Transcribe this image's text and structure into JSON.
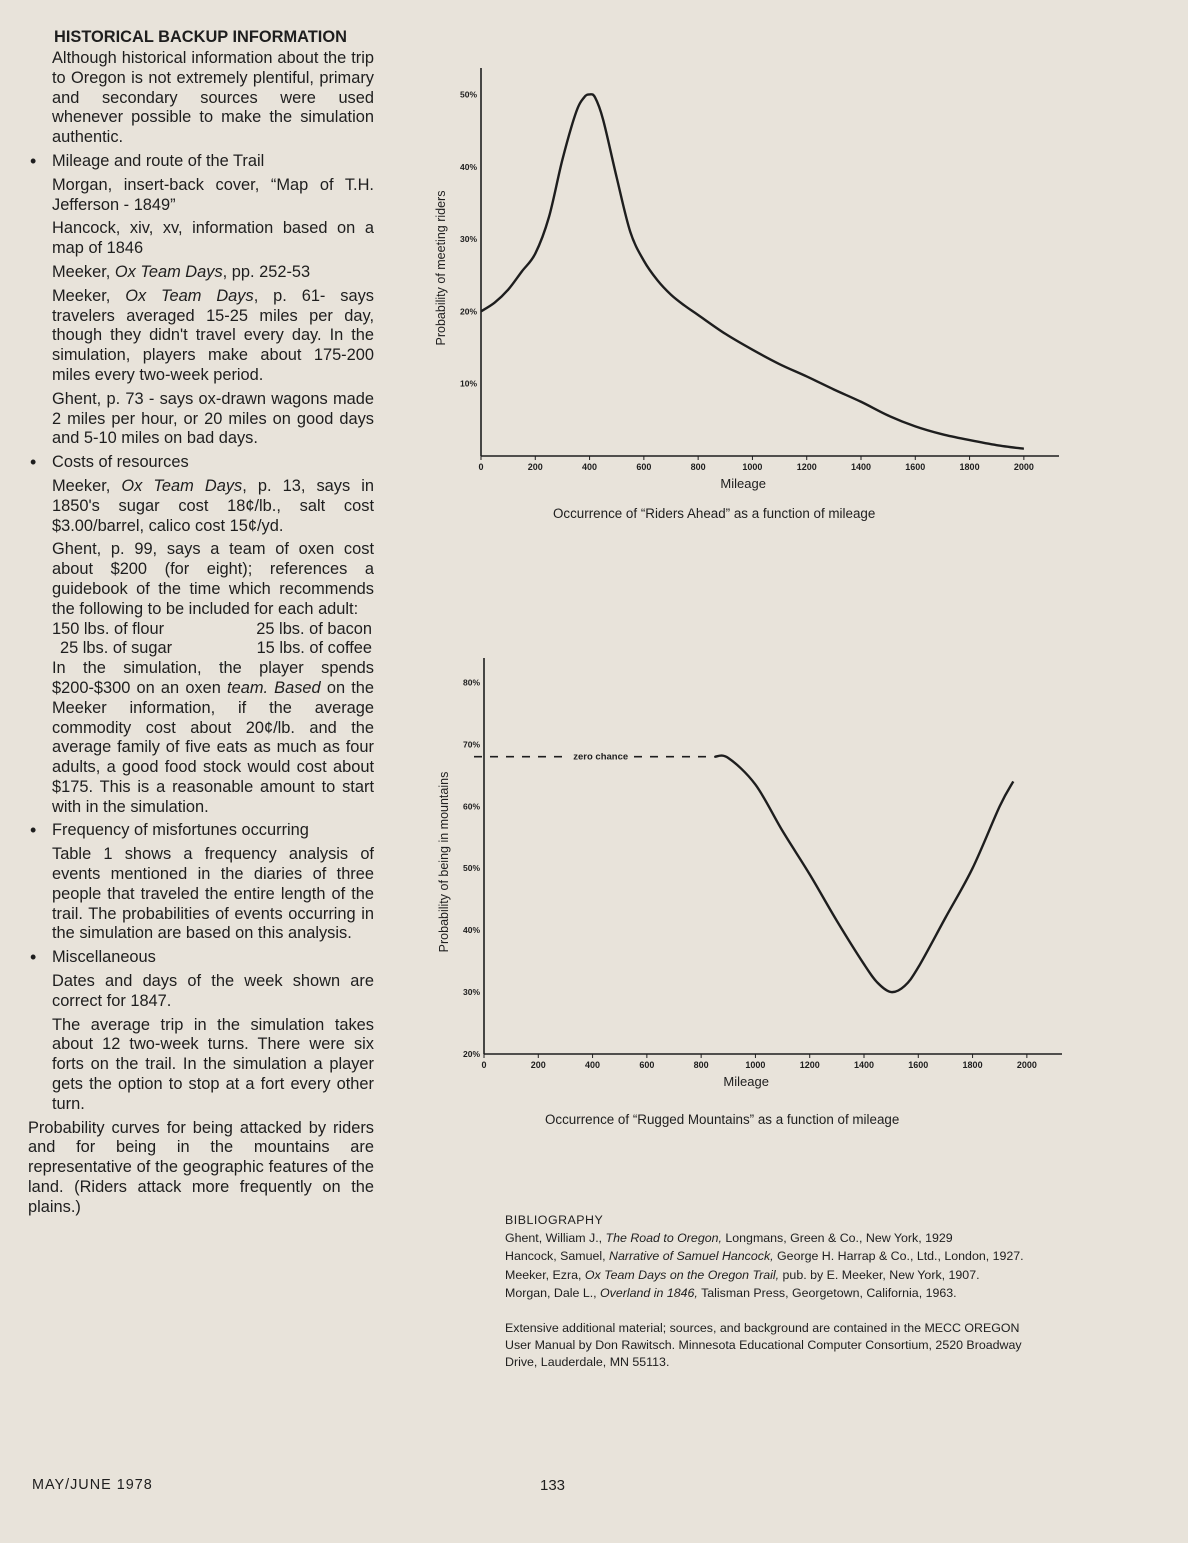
{
  "left_column": {
    "heading": "HISTORICAL BACKUP INFORMATION",
    "intro": "Although historical information about the trip to Oregon is not extremely plentiful, primary and secondary sources were used whenever possible to make the simulation authentic.",
    "bullet_mileage": "Mileage and route of the Trail",
    "mileage_p1": "Morgan, insert-back cover, “Map of T.H. Jefferson - 1849”",
    "mileage_p2": "Hancock, xiv, xv, information based on a map of 1846",
    "mileage_p3_a": "Meeker, ",
    "mileage_p3_b": "Ox Team Days",
    "mileage_p3_c": ", pp. 252-53",
    "mileage_p4_a": "Meeker, ",
    "mileage_p4_b": "Ox Team Days",
    "mileage_p4_c": ", p. 61- says travelers averaged 15-25 miles per day, though they didn't travel every day. In the simulation, players make about 175-200 miles every two-week period.",
    "mileage_p5": "Ghent, p. 73 - says ox-drawn wagons made 2 miles per hour, or 20 miles on good days and 5-10 miles on bad days.",
    "bullet_costs": "Costs of resources",
    "costs_p1_a": "Meeker, ",
    "costs_p1_b": "Ox Team Days",
    "costs_p1_c": ", p. 13, says in 1850's sugar cost 18¢/lb., salt cost $3.00/barrel, calico cost 15¢/yd.",
    "costs_p2": "Ghent, p. 99, says a team of oxen cost about $200 (for eight); references a guidebook of the time which recommends the following to be included for each adult:",
    "food": [
      "150 lbs. of flour",
      "25 lbs. of bacon",
      "25 lbs. of sugar",
      "15 lbs. of coffee"
    ],
    "costs_p3_a": "In the simulation, the player spends $200-$300 on an oxen ",
    "costs_p3_b": "team. Based",
    "costs_p3_c": " on the Meeker information, if the average commodity cost about 20¢/lb. and the average family of five eats as much as four adults, a good food stock would cost about $175. This is a reasonable amount to start with in the simulation.",
    "bullet_misfortunes": "Frequency of misfortunes occurring",
    "misfortunes_p1": "Table 1 shows a frequency analysis of events mentioned in the diaries of three people that traveled the entire length of the trail. The probabilities of events occurring in the simulation are based on this analysis.",
    "bullet_misc": "Miscellaneous",
    "misc_p1": "Dates and days of the week shown are correct for 1847.",
    "misc_p2": "The average trip in the simulation takes about 12 two-week turns. There were six forts on the trail. In the simulation a player gets the option to stop at a fort every other turn.",
    "closing": "Probability curves for being attacked by riders and for being in the mountains are representative of the geographic features of the land. (Riders attack more frequently on the plains.)"
  },
  "footer": {
    "issue": "MAY/JUNE 1978",
    "page": "133"
  },
  "chart_data": [
    {
      "type": "line",
      "title": "Occurrence of “Riders Ahead” as a function of mileage",
      "xlabel": "Mileage",
      "ylabel": "Probability of meeting riders",
      "xlim": [
        0,
        2100
      ],
      "ylim": [
        0,
        52
      ],
      "xticks": [
        0,
        200,
        400,
        600,
        800,
        1000,
        1200,
        1400,
        1600,
        1800,
        2000
      ],
      "yticks": [
        10,
        20,
        30,
        40,
        50
      ],
      "ytick_labels": [
        "10%",
        "20%",
        "30%",
        "40%",
        "50%"
      ],
      "grid": false,
      "series": [
        {
          "x": [
            0,
            50,
            100,
            150,
            200,
            250,
            300,
            350,
            380,
            400,
            420,
            450,
            500,
            550,
            600,
            650,
            700,
            750,
            800,
            900,
            1000,
            1100,
            1200,
            1300,
            1400,
            1500,
            1600,
            1700,
            1800,
            1900,
            2000
          ],
          "values": [
            20,
            21.2,
            23,
            25.5,
            28,
            33,
            41,
            47.5,
            49.6,
            50,
            49.6,
            46.5,
            38.5,
            31,
            27,
            24.3,
            22.3,
            20.8,
            19.5,
            16.9,
            14.7,
            12.7,
            11,
            9.2,
            7.5,
            5.6,
            4.1,
            3,
            2.2,
            1.5,
            1
          ]
        }
      ]
    },
    {
      "type": "line",
      "title": "Occurrence of “Rugged Mountains” as a function of mileage",
      "xlabel": "Mileage",
      "ylabel": "Probability of being in mountains",
      "xlim": [
        0,
        2100
      ],
      "ylim": [
        20,
        82
      ],
      "xticks": [
        0,
        200,
        400,
        600,
        800,
        1000,
        1200,
        1400,
        1600,
        1800,
        2000
      ],
      "yticks": [
        20,
        30,
        40,
        50,
        60,
        70,
        80
      ],
      "ytick_labels": [
        "20%",
        "30%",
        "40%",
        "50%",
        "60%",
        "70%",
        "80%"
      ],
      "grid": false,
      "annotation": "zero chance",
      "series": [
        {
          "x": [
            850,
            900,
            1000,
            1100,
            1200,
            1300,
            1400,
            1450,
            1500,
            1550,
            1600,
            1700,
            1800,
            1900,
            1950
          ],
          "values": [
            68,
            67.8,
            63.5,
            56,
            49,
            41.5,
            34.5,
            31.5,
            30,
            31,
            34,
            42,
            50,
            60,
            64
          ]
        }
      ],
      "zero_chance_range": [
        0,
        850
      ],
      "zero_chance_level": 68
    }
  ],
  "bibliography": {
    "title": "BIBLIOGRAPHY",
    "entries": [
      {
        "a": "Ghent, William J., ",
        "b": "The Road to Oregon,",
        "c": " Longmans, Green & Co., New York, 1929"
      },
      {
        "a": "Hancock, Samuel, ",
        "b": "Narrative of Samuel Hancock,",
        "c": " George H. Harrap & Co., Ltd., London, 1927."
      },
      {
        "a": "Meeker, Ezra, ",
        "b": "Ox Team Days on the Oregon Trail,",
        "c": " pub. by E. Meeker, New York, 1907."
      },
      {
        "a": "Morgan, Dale L., ",
        "b": "Overland in 1846,",
        "c": " Talisman Press, Georgetown, California, 1963."
      }
    ],
    "extra": "Extensive additional material; sources, and background are contained in the MECC OREGON User Manual by Don Rawitsch. Minnesota Educational Computer Consortium, 2520 Broadway Drive, Lauderdale, MN 55113."
  }
}
